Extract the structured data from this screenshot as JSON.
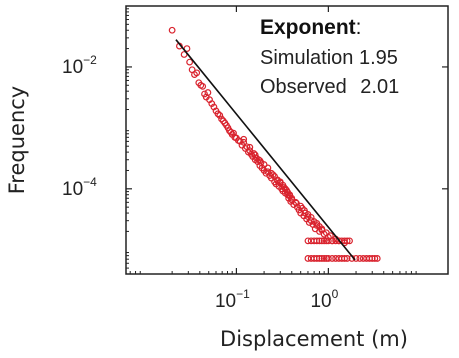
{
  "chart_data": {
    "type": "scatter",
    "title": "",
    "xlabel": "Displacement (m)",
    "ylabel": "Frequency",
    "x_scale": "log",
    "y_scale": "log",
    "xlim": [
      0.0063,
      20
    ],
    "ylim": [
      4e-06,
      0.1
    ],
    "x_ticks": [
      {
        "value": 0.1,
        "base": "10",
        "exponent": "−1"
      },
      {
        "value": 1,
        "base": "10",
        "exponent": "0"
      }
    ],
    "y_ticks": [
      {
        "value": 0.01,
        "base": "10",
        "exponent": "−2"
      },
      {
        "value": 0.0001,
        "base": "10",
        "exponent": "−4"
      }
    ],
    "grid": false,
    "legend": "none",
    "annotation": {
      "title": "Exponent",
      "title_suffix": ":",
      "lines": [
        {
          "label": "Simulation",
          "value": "1.95"
        },
        {
          "label": "Observed",
          "value": "2.01"
        }
      ]
    },
    "series": [
      {
        "kind": "scatter",
        "color": "#d9232e",
        "points": [
          [
            0.02,
            0.04
          ],
          [
            0.024,
            0.022
          ],
          [
            0.027,
            0.016
          ],
          [
            0.029,
            0.02
          ],
          [
            0.031,
            0.012
          ],
          [
            0.033,
            0.009
          ],
          [
            0.035,
            0.0075
          ],
          [
            0.037,
            0.008
          ],
          [
            0.039,
            0.0055
          ],
          [
            0.041,
            0.005
          ],
          [
            0.043,
            0.0048
          ],
          [
            0.045,
            0.0036
          ],
          [
            0.047,
            0.0032
          ],
          [
            0.049,
            0.0038
          ],
          [
            0.051,
            0.0029
          ],
          [
            0.054,
            0.0025
          ],
          [
            0.057,
            0.0022
          ],
          [
            0.06,
            0.0019
          ],
          [
            0.063,
            0.0017
          ],
          [
            0.066,
            0.0016
          ],
          [
            0.069,
            0.0014
          ],
          [
            0.072,
            0.0013
          ],
          [
            0.075,
            0.0012
          ],
          [
            0.078,
            0.0011
          ],
          [
            0.081,
            0.001
          ],
          [
            0.084,
            0.0009
          ],
          [
            0.087,
            0.00085
          ],
          [
            0.09,
            0.00078
          ],
          [
            0.093,
            0.00082
          ],
          [
            0.096,
            0.0007
          ],
          [
            0.1,
            0.00068
          ],
          [
            0.105,
            0.00062
          ],
          [
            0.11,
            0.0006
          ],
          [
            0.115,
            0.00052
          ],
          [
            0.12,
            0.00058
          ],
          [
            0.125,
            0.00046
          ],
          [
            0.13,
            0.00049
          ],
          [
            0.135,
            0.0004
          ],
          [
            0.14,
            0.00042
          ],
          [
            0.145,
            0.00037
          ],
          [
            0.15,
            0.00034
          ],
          [
            0.155,
            0.00038
          ],
          [
            0.16,
            0.0003
          ],
          [
            0.165,
            0.00032
          ],
          [
            0.17,
            0.00028
          ],
          [
            0.175,
            0.0003
          ],
          [
            0.18,
            0.00024
          ],
          [
            0.185,
            0.00027
          ],
          [
            0.19,
            0.00022
          ],
          [
            0.2,
            0.0002
          ],
          [
            0.21,
            0.00018
          ],
          [
            0.22,
            0.00019
          ],
          [
            0.23,
            0.000165
          ],
          [
            0.24,
            0.00015
          ],
          [
            0.25,
            0.00017
          ],
          [
            0.26,
            0.00013
          ],
          [
            0.27,
            0.00012
          ],
          [
            0.28,
            0.000135
          ],
          [
            0.29,
            0.00011
          ],
          [
            0.3,
            0.000125
          ],
          [
            0.31,
            0.0001
          ],
          [
            0.32,
            9.2e-05
          ],
          [
            0.33,
            0.000105
          ],
          [
            0.34,
            8.5e-05
          ],
          [
            0.35,
            9.5e-05
          ],
          [
            0.36,
            8e-05
          ],
          [
            0.37,
            7e-05
          ],
          [
            0.38,
            7.6e-05
          ],
          [
            0.39,
            6.2e-05
          ],
          [
            0.4,
            7e-05
          ],
          [
            0.42,
            5.5e-05
          ],
          [
            0.44,
            6e-05
          ],
          [
            0.46,
            5e-05
          ],
          [
            0.48,
            4.5e-05
          ],
          [
            0.5,
            4e-05
          ],
          [
            0.52,
            4.8e-05
          ],
          [
            0.54,
            3.6e-05
          ],
          [
            0.56,
            4e-05
          ],
          [
            0.58,
            3.2e-05
          ],
          [
            0.6,
            3.5e-05
          ],
          [
            0.62,
            2.8e-05
          ],
          [
            0.65,
            3e-05
          ],
          [
            0.68,
            2.6e-05
          ],
          [
            0.72,
            2.2e-05
          ],
          [
            0.75,
            2.5e-05
          ],
          [
            0.8,
            2e-05
          ],
          [
            0.85,
            2.1e-05
          ],
          [
            0.9,
            1.8e-05
          ],
          [
            0.95,
            1.9e-05
          ],
          [
            1.0,
            1.6e-05
          ],
          [
            1.05,
            1.7e-05
          ],
          [
            1.1,
            1.4e-05
          ],
          [
            1.2,
            1.5e-05
          ],
          [
            1.3,
            1.4e-05
          ],
          [
            1.5,
            1.3e-05
          ],
          [
            0.12,
            0.00065
          ],
          [
            0.14,
            0.00048
          ],
          [
            0.16,
            0.00036
          ],
          [
            0.18,
            0.00029
          ],
          [
            0.2,
            0.00025
          ],
          [
            0.22,
            0.00022
          ],
          [
            0.24,
            0.00018
          ],
          [
            0.26,
            0.00016
          ],
          [
            0.28,
            0.00014
          ],
          [
            0.3,
            0.00013
          ],
          [
            0.32,
            0.000115
          ],
          [
            0.34,
            0.0001
          ],
          [
            0.36,
            8.8e-05
          ],
          [
            0.38,
            8e-05
          ],
          [
            0.4,
            6.6e-05
          ],
          [
            0.45,
            5.8e-05
          ],
          [
            0.5,
            5.2e-05
          ],
          [
            0.55,
            4.4e-05
          ],
          [
            0.6,
            3.8e-05
          ],
          [
            0.65,
            3.4e-05
          ],
          [
            0.7,
            2.9e-05
          ],
          [
            0.75,
            2.7e-05
          ],
          [
            0.8,
            2.4e-05
          ],
          [
            0.85,
            2.2e-05
          ],
          [
            0.6,
            1.4e-05
          ],
          [
            0.65,
            1.4e-05
          ],
          [
            0.7,
            1.4e-05
          ],
          [
            0.75,
            1.4e-05
          ],
          [
            0.8,
            1.4e-05
          ],
          [
            0.85,
            1.4e-05
          ],
          [
            0.9,
            1.4e-05
          ],
          [
            0.95,
            1.4e-05
          ],
          [
            1.0,
            1.4e-05
          ],
          [
            1.1,
            1.4e-05
          ],
          [
            1.2,
            1.4e-05
          ],
          [
            1.3,
            1.4e-05
          ],
          [
            1.4,
            1.4e-05
          ],
          [
            1.5,
            1.4e-05
          ],
          [
            1.6,
            1.4e-05
          ],
          [
            1.7,
            1.4e-05
          ],
          [
            0.6,
            7.2e-06
          ],
          [
            0.65,
            7.2e-06
          ],
          [
            0.7,
            7.2e-06
          ],
          [
            0.75,
            7.2e-06
          ],
          [
            0.8,
            7.2e-06
          ],
          [
            0.85,
            7.2e-06
          ],
          [
            0.9,
            7.2e-06
          ],
          [
            0.95,
            7.2e-06
          ],
          [
            1.0,
            7.2e-06
          ],
          [
            1.1,
            7.2e-06
          ],
          [
            1.2,
            7.2e-06
          ],
          [
            1.3,
            7.2e-06
          ],
          [
            1.4,
            7.2e-06
          ],
          [
            1.5,
            7.2e-06
          ],
          [
            1.6,
            7.2e-06
          ],
          [
            1.8,
            7.2e-06
          ],
          [
            2.0,
            7.2e-06
          ],
          [
            2.2,
            7.2e-06
          ],
          [
            2.4,
            7.2e-06
          ],
          [
            2.6,
            7.2e-06
          ],
          [
            2.8,
            7.2e-06
          ],
          [
            3.0,
            7.2e-06
          ],
          [
            3.2,
            7.2e-06
          ],
          [
            3.4,
            7.2e-06
          ]
        ]
      },
      {
        "kind": "line",
        "color": "#111111",
        "points": [
          [
            0.022,
            0.028
          ],
          [
            1.95,
            6.8e-06
          ]
        ]
      }
    ]
  }
}
